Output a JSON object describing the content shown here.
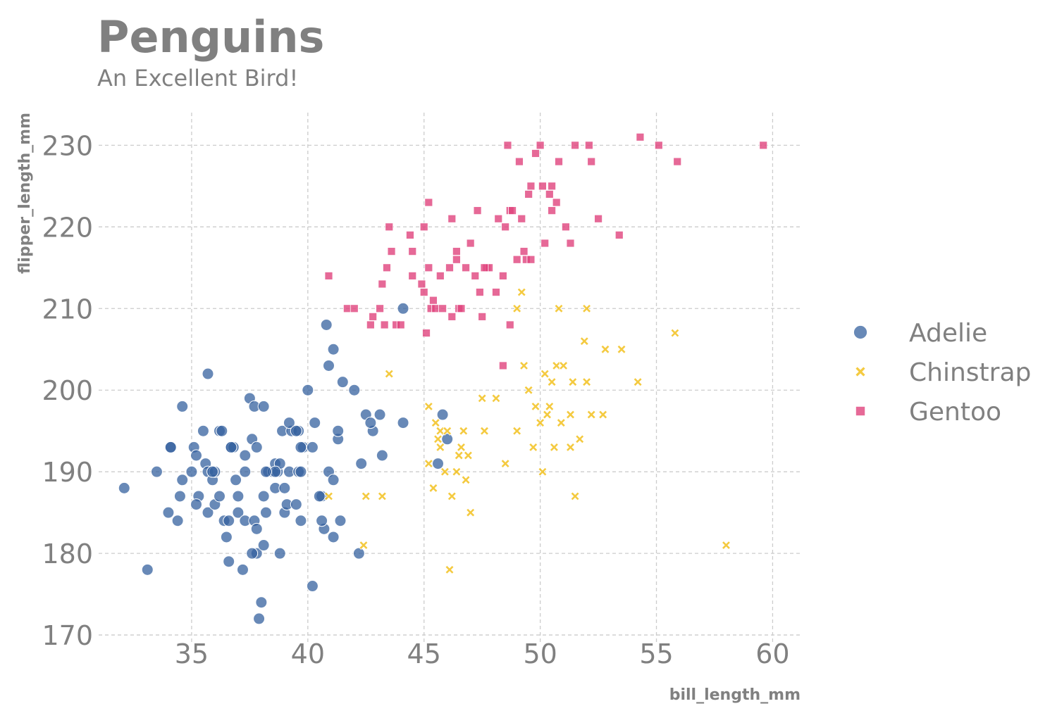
{
  "chart_data": {
    "type": "scatter",
    "title": "Penguins",
    "subtitle": "An Excellent Bird!",
    "xlabel": "bill_length_mm",
    "ylabel": "flipper_length_mm",
    "xlim": [
      31,
      61.2
    ],
    "ylim": [
      168.8,
      234
    ],
    "xticks": [
      35,
      40,
      45,
      50,
      55,
      60
    ],
    "yticks": [
      170,
      180,
      190,
      200,
      210,
      220,
      230
    ],
    "grid": true,
    "legend_position": "right",
    "series": [
      {
        "name": "Adelie",
        "marker": "circle",
        "color": "#35619F",
        "points": [
          [
            32.1,
            188
          ],
          [
            33.1,
            178
          ],
          [
            33.5,
            190
          ],
          [
            34,
            185
          ],
          [
            34.1,
            193
          ],
          [
            34.4,
            184
          ],
          [
            34.5,
            187
          ],
          [
            34.6,
            189
          ],
          [
            34.6,
            198
          ],
          [
            35,
            190
          ],
          [
            35.1,
            193
          ],
          [
            35.2,
            192
          ],
          [
            35.3,
            187
          ],
          [
            35.2,
            186
          ],
          [
            35.5,
            195
          ],
          [
            35.6,
            191
          ],
          [
            35.7,
            190
          ],
          [
            35.7,
            185
          ],
          [
            35.7,
            202
          ],
          [
            35.9,
            189
          ],
          [
            36,
            186
          ],
          [
            36,
            190
          ],
          [
            36.2,
            187
          ],
          [
            36.2,
            195
          ],
          [
            36.4,
            184
          ],
          [
            36.5,
            182
          ],
          [
            36.6,
            179
          ],
          [
            36.6,
            184
          ],
          [
            36.7,
            193
          ],
          [
            36.8,
            193
          ],
          [
            36.9,
            189
          ],
          [
            37,
            185
          ],
          [
            37,
            187
          ],
          [
            37.2,
            178
          ],
          [
            37.3,
            184
          ],
          [
            37.3,
            192
          ],
          [
            37.5,
            199
          ],
          [
            37.6,
            194
          ],
          [
            37.7,
            198
          ],
          [
            37.8,
            180
          ],
          [
            37.8,
            193
          ],
          [
            37.9,
            172
          ],
          [
            38,
            174
          ],
          [
            38.1,
            181
          ],
          [
            38.1,
            187
          ],
          [
            38.2,
            185
          ],
          [
            38.3,
            190
          ],
          [
            38.5,
            190
          ],
          [
            38.6,
            188
          ],
          [
            38.6,
            191
          ],
          [
            38.7,
            190
          ],
          [
            38.8,
            191
          ],
          [
            38.9,
            195
          ],
          [
            39,
            185
          ],
          [
            39.1,
            186
          ],
          [
            39.2,
            190
          ],
          [
            39.3,
            195
          ],
          [
            39.5,
            186
          ],
          [
            39.6,
            190
          ],
          [
            39.7,
            184
          ],
          [
            39.7,
            190
          ],
          [
            39.8,
            193
          ],
          [
            40,
            200
          ],
          [
            40.2,
            193
          ],
          [
            40.3,
            196
          ],
          [
            40.6,
            187
          ],
          [
            40.7,
            183
          ],
          [
            40.8,
            208
          ],
          [
            40.9,
            190
          ],
          [
            41.1,
            182
          ],
          [
            41.1,
            205
          ],
          [
            41.3,
            194
          ],
          [
            41.5,
            201
          ],
          [
            42,
            200
          ],
          [
            42.2,
            180
          ],
          [
            42.3,
            191
          ],
          [
            42.5,
            197
          ],
          [
            42.8,
            195
          ],
          [
            43.1,
            197
          ],
          [
            43.2,
            192
          ],
          [
            44.1,
            196
          ],
          [
            44.1,
            210
          ],
          [
            45.6,
            191
          ],
          [
            45.8,
            197
          ],
          [
            46,
            194
          ],
          [
            34.1,
            193
          ],
          [
            35.9,
            190
          ],
          [
            36.7,
            193
          ],
          [
            37.6,
            180
          ],
          [
            38.6,
            190
          ],
          [
            39.2,
            196
          ],
          [
            39.6,
            195
          ],
          [
            40.5,
            187
          ],
          [
            40.9,
            203
          ],
          [
            41.4,
            184
          ],
          [
            37.3,
            190
          ],
          [
            38.8,
            180
          ],
          [
            39.5,
            195
          ],
          [
            39.7,
            193
          ],
          [
            40.2,
            176
          ],
          [
            40.6,
            184
          ],
          [
            41.1,
            189
          ],
          [
            41.3,
            195
          ],
          [
            42.7,
            196
          ],
          [
            38.1,
            198
          ],
          [
            39,
            188
          ],
          [
            38.2,
            190
          ],
          [
            37.7,
            184
          ],
          [
            36.3,
            195
          ],
          [
            37.8,
            183
          ]
        ]
      },
      {
        "name": "Chinstrap",
        "marker": "cross",
        "color": "#F0B800",
        "points": [
          [
            40.9,
            187
          ],
          [
            42.4,
            181
          ],
          [
            42.5,
            187
          ],
          [
            43.2,
            187
          ],
          [
            43.5,
            202
          ],
          [
            45.2,
            191
          ],
          [
            45.2,
            198
          ],
          [
            45.4,
            188
          ],
          [
            45.5,
            196
          ],
          [
            45.6,
            194
          ],
          [
            45.7,
            195
          ],
          [
            45.9,
            190
          ],
          [
            46.1,
            178
          ],
          [
            46.2,
            187
          ],
          [
            46.4,
            190
          ],
          [
            46.5,
            192
          ],
          [
            46.6,
            193
          ],
          [
            46.7,
            195
          ],
          [
            46.8,
            189
          ],
          [
            46.9,
            192
          ],
          [
            47,
            185
          ],
          [
            47.5,
            199
          ],
          [
            47.6,
            195
          ],
          [
            48.1,
            199
          ],
          [
            48.5,
            191
          ],
          [
            49,
            195
          ],
          [
            49.2,
            212
          ],
          [
            49.3,
            203
          ],
          [
            49.5,
            200
          ],
          [
            49.7,
            193
          ],
          [
            49.8,
            198
          ],
          [
            50,
            196
          ],
          [
            50.1,
            190
          ],
          [
            50.2,
            202
          ],
          [
            50.3,
            197
          ],
          [
            50.5,
            201
          ],
          [
            50.6,
            193
          ],
          [
            50.7,
            203
          ],
          [
            50.8,
            210
          ],
          [
            50.9,
            196
          ],
          [
            51,
            203
          ],
          [
            51.3,
            193
          ],
          [
            51.4,
            201
          ],
          [
            51.5,
            187
          ],
          [
            51.7,
            194
          ],
          [
            51.9,
            206
          ],
          [
            52,
            201
          ],
          [
            52.2,
            197
          ],
          [
            52.7,
            197
          ],
          [
            52.8,
            205
          ],
          [
            53.5,
            205
          ],
          [
            54.2,
            201
          ],
          [
            55.8,
            207
          ],
          [
            58,
            181
          ],
          [
            45.7,
            193
          ],
          [
            46,
            195
          ],
          [
            49,
            210
          ],
          [
            50.4,
            198
          ],
          [
            52,
            210
          ],
          [
            51.3,
            197
          ]
        ]
      },
      {
        "name": "Gentoo",
        "marker": "square",
        "color": "#E0447D",
        "points": [
          [
            40.9,
            214
          ],
          [
            41.7,
            210
          ],
          [
            42,
            210
          ],
          [
            42.7,
            208
          ],
          [
            42.8,
            209
          ],
          [
            43.2,
            213
          ],
          [
            43.3,
            208
          ],
          [
            43.4,
            215
          ],
          [
            43.5,
            220
          ],
          [
            43.6,
            217
          ],
          [
            43.8,
            208
          ],
          [
            44,
            208
          ],
          [
            44.4,
            219
          ],
          [
            44.5,
            217
          ],
          [
            44.9,
            213
          ],
          [
            45,
            212
          ],
          [
            45.1,
            207
          ],
          [
            45.2,
            215
          ],
          [
            45.3,
            210
          ],
          [
            45.4,
            211
          ],
          [
            45.5,
            210
          ],
          [
            45.7,
            214
          ],
          [
            45.8,
            210
          ],
          [
            46.1,
            215
          ],
          [
            46.2,
            221
          ],
          [
            46.4,
            216
          ],
          [
            46.5,
            210
          ],
          [
            46.6,
            210
          ],
          [
            46.8,
            215
          ],
          [
            47,
            218
          ],
          [
            47.2,
            214
          ],
          [
            47.3,
            222
          ],
          [
            47.5,
            209
          ],
          [
            47.7,
            215
          ],
          [
            47.8,
            215
          ],
          [
            48.1,
            212
          ],
          [
            48.2,
            221
          ],
          [
            48.4,
            214
          ],
          [
            48.5,
            220
          ],
          [
            48.6,
            230
          ],
          [
            48.7,
            222
          ],
          [
            48.8,
            222
          ],
          [
            49,
            216
          ],
          [
            49.1,
            228
          ],
          [
            49.2,
            221
          ],
          [
            49.3,
            217
          ],
          [
            49.4,
            216
          ],
          [
            49.5,
            224
          ],
          [
            49.6,
            225
          ],
          [
            49.8,
            229
          ],
          [
            50,
            230
          ],
          [
            50.1,
            225
          ],
          [
            50.2,
            218
          ],
          [
            50.4,
            224
          ],
          [
            50.5,
            222
          ],
          [
            50.7,
            223
          ],
          [
            50.8,
            228
          ],
          [
            51.1,
            220
          ],
          [
            51.3,
            218
          ],
          [
            51.5,
            230
          ],
          [
            52.1,
            230
          ],
          [
            52.2,
            228
          ],
          [
            52.5,
            221
          ],
          [
            53.4,
            219
          ],
          [
            54.3,
            231
          ],
          [
            55.1,
            230
          ],
          [
            55.9,
            228
          ],
          [
            59.6,
            230
          ],
          [
            45.2,
            223
          ],
          [
            44.5,
            214
          ],
          [
            46.2,
            209
          ],
          [
            47.6,
            215
          ],
          [
            48.4,
            203
          ],
          [
            48.7,
            208
          ],
          [
            49.6,
            216
          ],
          [
            50.5,
            225
          ],
          [
            45,
            220
          ],
          [
            46.4,
            217
          ],
          [
            47.4,
            212
          ],
          [
            43.1,
            210
          ]
        ]
      }
    ]
  }
}
